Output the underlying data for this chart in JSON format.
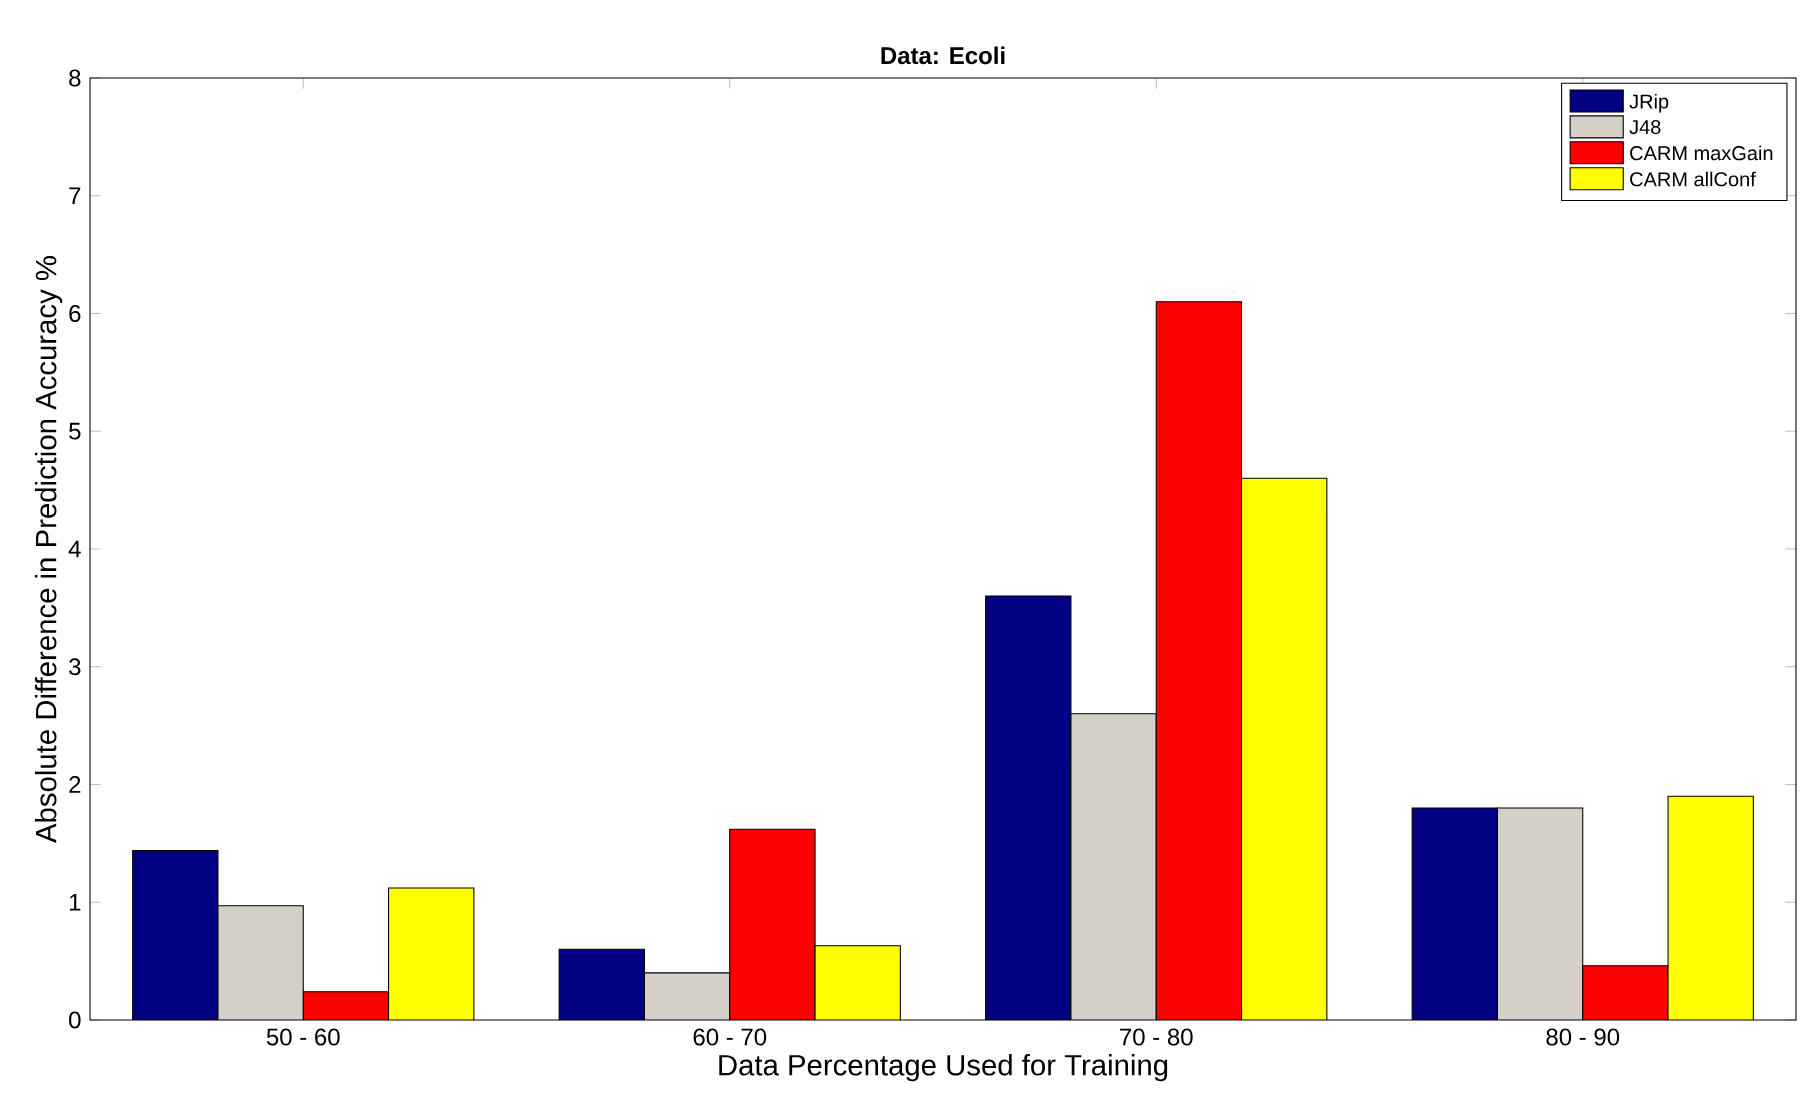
{
  "chart_data": {
    "type": "bar",
    "title": "Data: Ecoli",
    "xlabel": "Data Percentage Used for Training",
    "ylabel": "Absolute Difference in Prediction Accuracy %",
    "categories": [
      "50 - 60",
      "60 - 70",
      "70 - 80",
      "80 - 90"
    ],
    "series": [
      {
        "name": "JRip",
        "color": "#000080",
        "values": [
          1.44,
          0.6,
          3.6,
          1.8
        ]
      },
      {
        "name": "J48",
        "color": "#d4d0c8",
        "values": [
          0.97,
          0.4,
          2.6,
          1.8
        ]
      },
      {
        "name": "CARM maxGain",
        "color": "#ff0000",
        "values": [
          0.24,
          1.62,
          6.1,
          0.46
        ]
      },
      {
        "name": "CARM allConf",
        "color": "#ffff00",
        "values": [
          1.12,
          0.63,
          4.6,
          1.9
        ]
      }
    ],
    "ylim": [
      0,
      8
    ],
    "yticks": [
      0,
      1,
      2,
      3,
      4,
      5,
      6,
      7,
      8
    ],
    "grid": false,
    "legend": "top right"
  }
}
